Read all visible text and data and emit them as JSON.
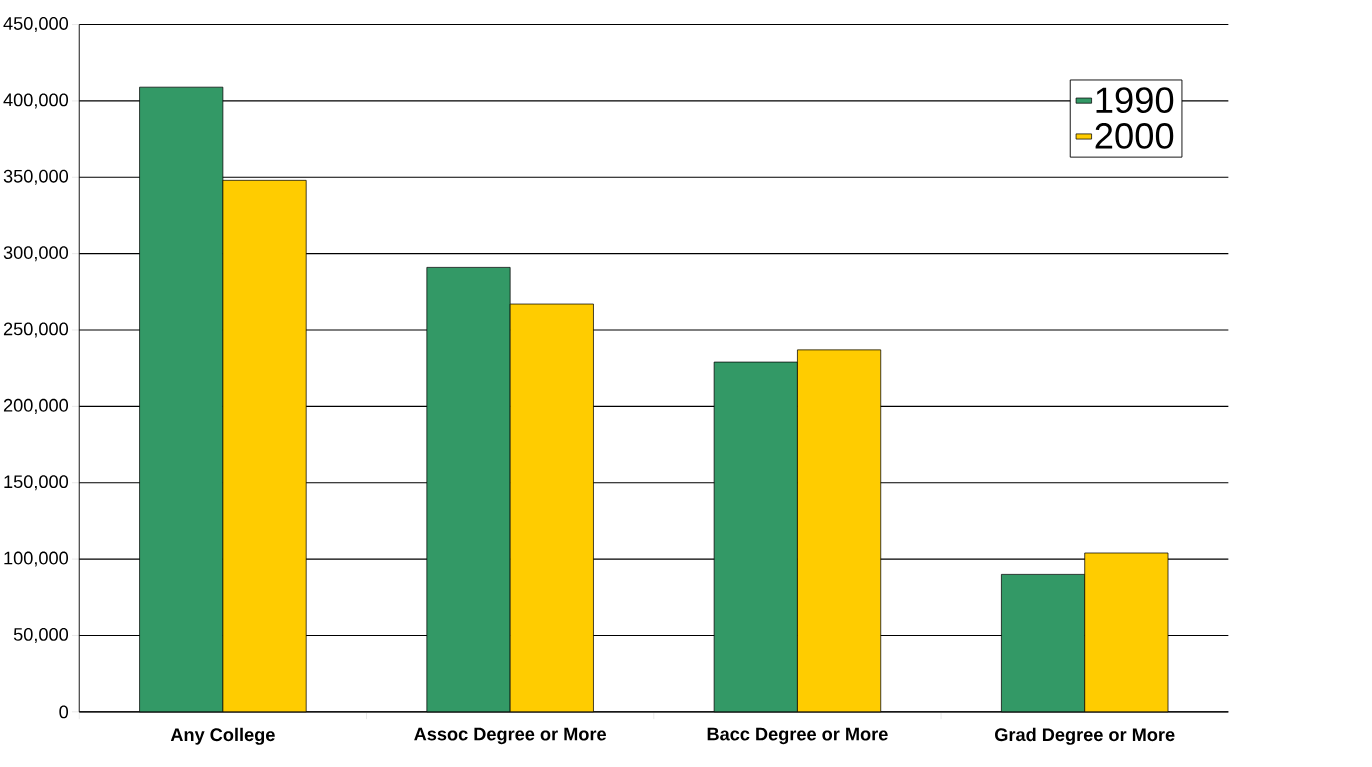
{
  "chart_data": {
    "type": "bar",
    "categories": [
      "Any College",
      "Assoc Degree or More",
      "Bacc Degree or More",
      "Grad Degree or More"
    ],
    "series": [
      {
        "name": "1990",
        "color": "#339966",
        "values": [
          409000,
          291000,
          229000,
          90000
        ]
      },
      {
        "name": "2000",
        "color": "#ffcc00",
        "values": [
          348000,
          267000,
          237000,
          104000
        ]
      }
    ],
    "ylim": [
      0,
      450000
    ],
    "yticks": [
      0,
      {
        "value": 50000,
        "label": "50,000"
      },
      {
        "value": 100000,
        "label": "100,000"
      },
      {
        "value": 150000,
        "label": "150,000"
      },
      {
        "value": 200000,
        "label": "200,000"
      },
      {
        "value": 250000,
        "label": "250,000"
      },
      {
        "value": 300000,
        "label": "300,000"
      },
      {
        "value": 350000,
        "label": "350,000"
      },
      {
        "value": 400000,
        "label": "400,000"
      },
      {
        "value": 450000,
        "label": "450,000"
      }
    ],
    "grid": "y",
    "legend": "top right"
  }
}
